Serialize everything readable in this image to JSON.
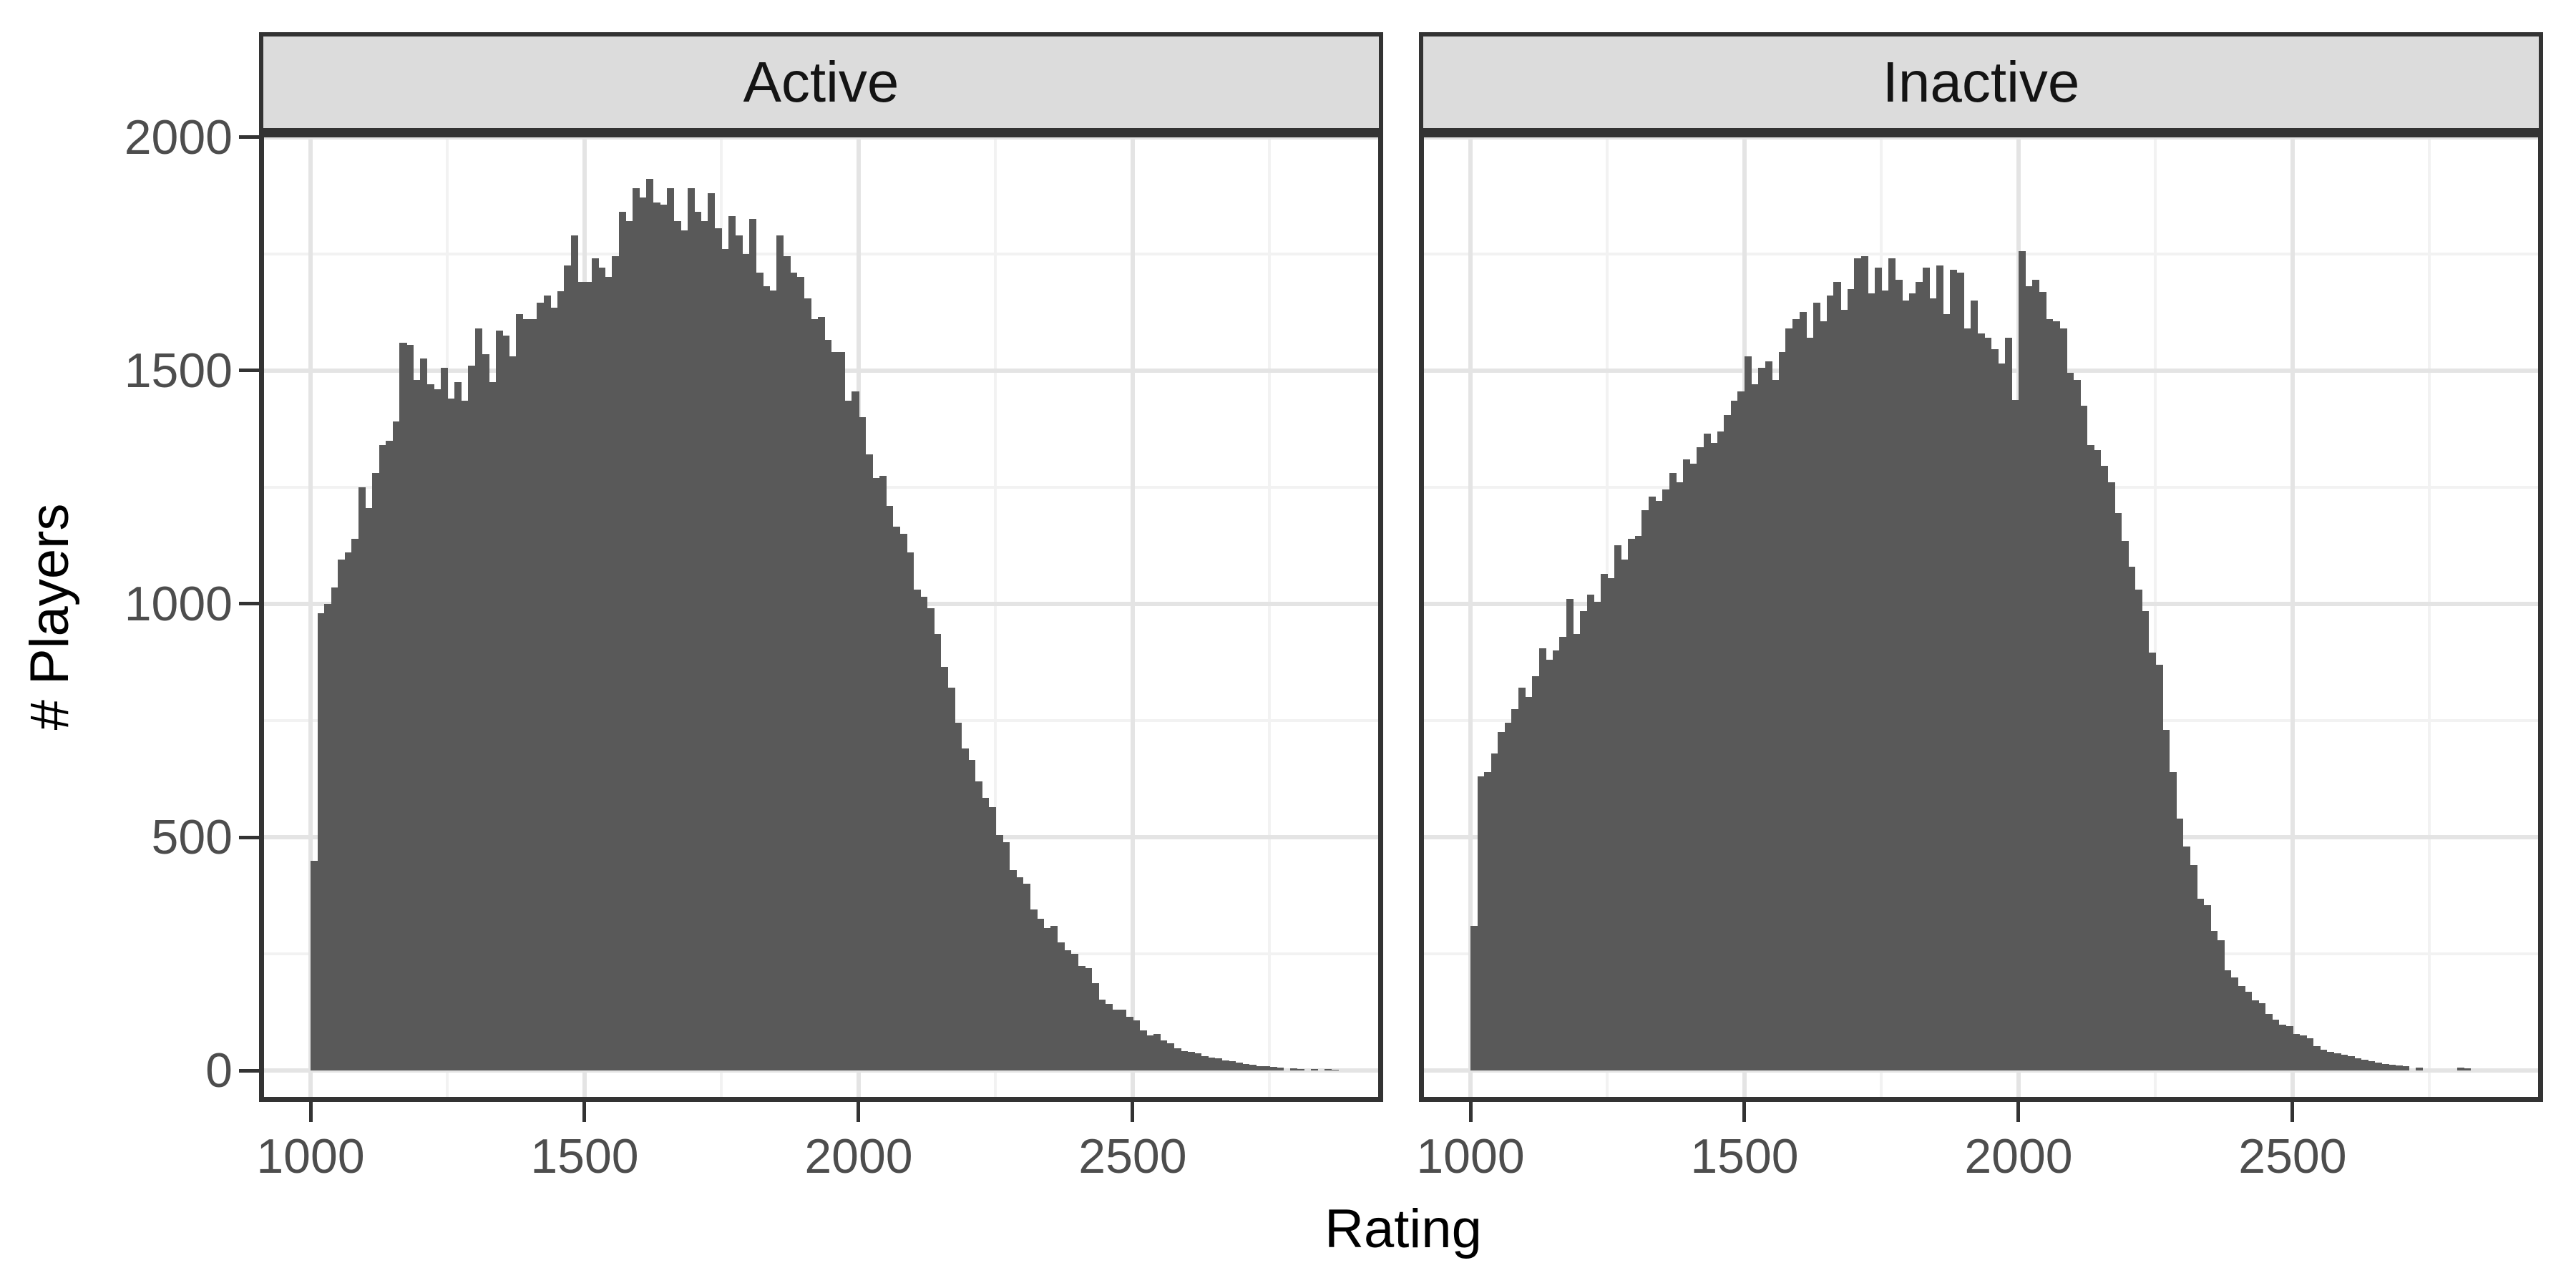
{
  "chart_data": {
    "type": "bar",
    "subtype": "faceted-histogram",
    "title": "",
    "xlabel": "Rating",
    "ylabel": "# Players",
    "legend": "none",
    "grid": "on",
    "x_ticks": [
      1000,
      1500,
      2000,
      2500
    ],
    "y_ticks": [
      0,
      500,
      1000,
      1500,
      2000
    ],
    "x_minor": [
      1250,
      1750,
      2250,
      2750
    ],
    "y_minor": [
      250,
      750,
      1250,
      1750
    ],
    "x_range": [
      906,
      2957
    ],
    "y_range": [
      -67,
      2010
    ],
    "ylim": [
      0,
      2000
    ],
    "bin_start": 1000,
    "bin_width": 12.5,
    "bar_color": "#595959",
    "facets": [
      {
        "label": "Active",
        "counts": [
          450,
          980,
          1000,
          1035,
          1095,
          1110,
          1140,
          1250,
          1205,
          1280,
          1340,
          1350,
          1390,
          1560,
          1555,
          1480,
          1525,
          1470,
          1460,
          1505,
          1440,
          1475,
          1435,
          1510,
          1590,
          1535,
          1475,
          1585,
          1575,
          1530,
          1620,
          1610,
          1610,
          1645,
          1660,
          1635,
          1670,
          1725,
          1790,
          1690,
          1690,
          1740,
          1720,
          1700,
          1745,
          1840,
          1820,
          1890,
          1870,
          1910,
          1860,
          1855,
          1890,
          1820,
          1800,
          1890,
          1840,
          1820,
          1880,
          1805,
          1760,
          1830,
          1790,
          1750,
          1825,
          1710,
          1680,
          1672,
          1790,
          1745,
          1710,
          1700,
          1655,
          1610,
          1615,
          1565,
          1540,
          1540,
          1435,
          1455,
          1400,
          1320,
          1270,
          1275,
          1210,
          1165,
          1150,
          1110,
          1030,
          1015,
          990,
          935,
          865,
          820,
          745,
          690,
          665,
          620,
          585,
          565,
          505,
          490,
          430,
          415,
          400,
          345,
          325,
          305,
          310,
          275,
          258,
          250,
          225,
          220,
          188,
          152,
          143,
          130,
          130,
          116,
          108,
          86,
          75,
          78,
          65,
          59,
          48,
          42,
          40,
          37,
          31,
          28,
          26,
          22,
          20,
          17,
          15,
          12,
          10,
          9,
          8,
          7,
          0,
          5,
          4,
          0,
          4,
          0,
          3,
          2
        ]
      },
      {
        "label": "Inactive",
        "counts": [
          310,
          630,
          640,
          680,
          725,
          745,
          775,
          820,
          800,
          845,
          905,
          880,
          900,
          930,
          1010,
          935,
          985,
          1020,
          1005,
          1065,
          1055,
          1125,
          1095,
          1140,
          1145,
          1200,
          1230,
          1220,
          1245,
          1280,
          1260,
          1310,
          1300,
          1335,
          1365,
          1345,
          1370,
          1405,
          1435,
          1455,
          1530,
          1470,
          1505,
          1520,
          1480,
          1540,
          1590,
          1610,
          1625,
          1570,
          1645,
          1605,
          1660,
          1690,
          1630,
          1675,
          1740,
          1745,
          1665,
          1720,
          1672,
          1740,
          1695,
          1650,
          1665,
          1690,
          1720,
          1655,
          1725,
          1620,
          1715,
          1710,
          1590,
          1650,
          1580,
          1570,
          1545,
          1515,
          1570,
          1437,
          1756,
          1680,
          1695,
          1668,
          1610,
          1605,
          1590,
          1495,
          1480,
          1425,
          1340,
          1330,
          1295,
          1260,
          1195,
          1135,
          1080,
          1030,
          985,
          895,
          870,
          730,
          640,
          540,
          480,
          440,
          369,
          355,
          300,
          280,
          215,
          200,
          182,
          169,
          150,
          145,
          122,
          110,
          98,
          95,
          79,
          76,
          70,
          53,
          45,
          40,
          37,
          34,
          31,
          27,
          24,
          21,
          17,
          14,
          12,
          11,
          9,
          0,
          7,
          0,
          0,
          0,
          0,
          0,
          6,
          5
        ]
      }
    ]
  },
  "colors": {
    "bar": "#595959",
    "strip_background": "#DCDCDC",
    "strip_text": "#141414",
    "panel_border": "#333333",
    "grid_major": "#E4E4E4",
    "grid_minor": "#F2F2F2",
    "axis_text": "#4D4D4D",
    "axis_title": "#000000",
    "background": "#FFFFFF"
  }
}
